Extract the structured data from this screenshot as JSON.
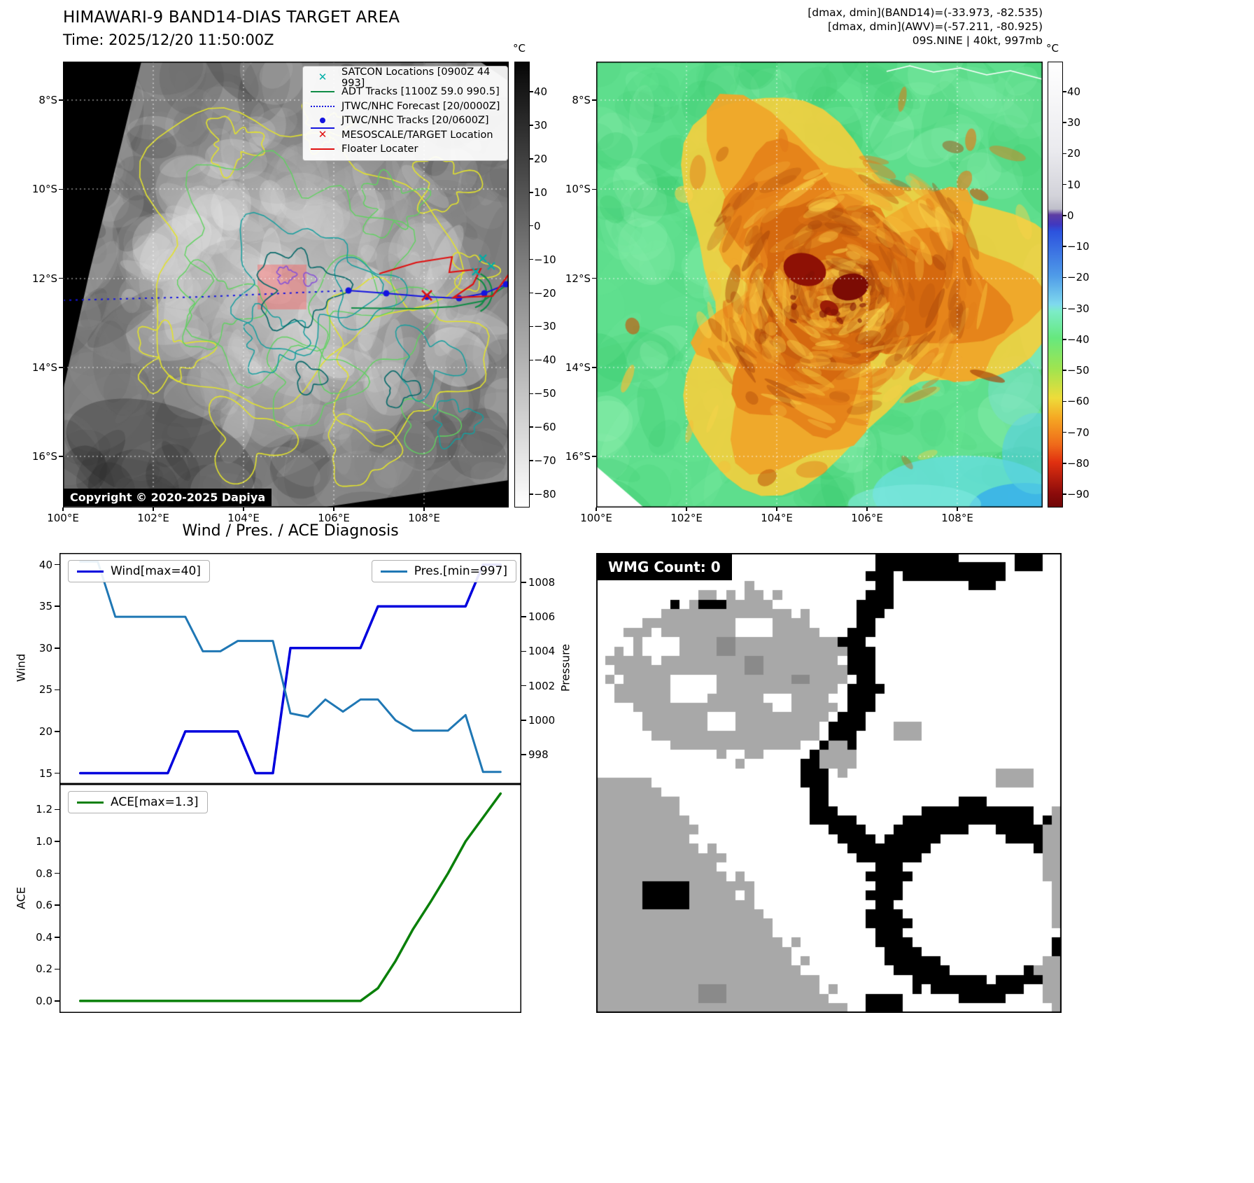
{
  "band14": {
    "title": "HIMAWARI-9 BAND14-DIAS TARGET AREA",
    "time_line": "Time: 2025/12/20 11:50:00Z",
    "legend": [
      {
        "label": "SATCON Locations [0900Z 44 993]"
      },
      {
        "label": "ADT Tracks [1100Z 59.0 990.5]"
      },
      {
        "label": "JTWC/NHC Forecast [20/0000Z]"
      },
      {
        "label": "JTWC/NHC Tracks [20/0600Z]"
      },
      {
        "label": "MESOSCALE/TARGET Location"
      },
      {
        "label": "Floater Locater"
      }
    ],
    "copyright": "Copyright © 2020-2025 Dapiya",
    "x_ticks": [
      "100°E",
      "102°E",
      "104°E",
      "106°E",
      "108°E"
    ],
    "y_ticks": [
      "8°S",
      "10°S",
      "12°S",
      "14°S",
      "16°S"
    ],
    "track_colors": {
      "satcon": "#00afa8",
      "adt": "#0f8c46",
      "forecast": "#1414e0",
      "tracks": "#1414e0",
      "mesoscale": "#e01010",
      "floater": "#e01010"
    },
    "colorbar": {
      "unit": "°C",
      "ticks": [
        "40",
        "30",
        "20",
        "10",
        "0",
        "−10",
        "−20",
        "−30",
        "−40",
        "−50",
        "−60",
        "−70",
        "−80"
      ],
      "gradient": [
        [
          0,
          "#050505"
        ],
        [
          0.05,
          "#141414"
        ],
        [
          0.5,
          "#8a8a8a"
        ],
        [
          1,
          "#ffffff"
        ]
      ]
    }
  },
  "awv": {
    "header_lines": [
      "[dmax, dmin](BAND14)=(-33.973, -82.535)",
      "[dmax, dmin](AWV)=(-57.211, -80.925)",
      "09S.NINE | 40kt, 997mb"
    ],
    "x_ticks": [
      "100°E",
      "102°E",
      "104°E",
      "106°E",
      "108°E"
    ],
    "y_ticks": [
      "8°S",
      "10°S",
      "12°S",
      "14°S",
      "16°S"
    ],
    "colorbar": {
      "unit": "°C",
      "ticks": [
        "40",
        "30",
        "20",
        "10",
        "0",
        "−10",
        "−20",
        "−30",
        "−40",
        "−50",
        "−60",
        "−70",
        "−80",
        "−90"
      ],
      "gradient": [
        [
          0,
          "#ffffff"
        ],
        [
          0.2,
          "#eaeaee"
        ],
        [
          0.3,
          "#d3d3da"
        ],
        [
          0.33,
          "#bfbfca"
        ],
        [
          0.343,
          "#5e3da2"
        ],
        [
          0.365,
          "#4038c0"
        ],
        [
          0.38,
          "#2c52de"
        ],
        [
          0.48,
          "#4f9be8"
        ],
        [
          0.545,
          "#7fd9ee"
        ],
        [
          0.56,
          "#7cecc8"
        ],
        [
          0.62,
          "#66e87e"
        ],
        [
          0.69,
          "#a0e44f"
        ],
        [
          0.755,
          "#eedc3a"
        ],
        [
          0.8,
          "#f5a823"
        ],
        [
          0.86,
          "#ef6a1a"
        ],
        [
          0.9,
          "#e03010"
        ],
        [
          0.97,
          "#8c0b0b"
        ],
        [
          1,
          "#700606"
        ]
      ]
    }
  },
  "wmg": {
    "title": "WMG Count: 0"
  },
  "chart_data": [
    {
      "type": "line",
      "title": "Wind / Pres. / ACE Diagnosis",
      "series": [
        {
          "name": "Wind[max=40]",
          "axis": "left",
          "color": "#0000dd",
          "width": 3.5,
          "values": [
            15,
            15,
            15,
            15,
            15,
            15,
            20,
            20,
            20,
            20,
            15,
            15,
            30,
            30,
            30,
            30,
            30,
            35,
            35,
            35,
            35,
            35,
            35,
            40,
            40
          ]
        },
        {
          "name": "Pres.[min=997]",
          "axis": "right",
          "color": "#1f77b4",
          "width": 3,
          "values": [
            1009.2,
            1009.2,
            1006,
            1006,
            1006,
            1006,
            1006,
            1004,
            1004,
            1004.6,
            1004.6,
            1004.6,
            1000.4,
            1000.2,
            1001.2,
            1000.5,
            1001.2,
            1001.2,
            1000,
            999.4,
            999.4,
            999.4,
            1000.3,
            997,
            997
          ]
        }
      ],
      "left_axis": {
        "label": "Wind",
        "ticks": [
          "15",
          "20",
          "25",
          "30",
          "35",
          "40"
        ],
        "range": [
          13.7,
          41.4
        ]
      },
      "right_axis": {
        "label": "Pressure",
        "ticks": [
          "998",
          "1000",
          "1002",
          "1004",
          "1006",
          "1008"
        ],
        "range": [
          996.3,
          1009.7
        ]
      },
      "legend_position": {
        "wind": "upper-left",
        "pressure": "upper-right"
      }
    },
    {
      "type": "line",
      "series": [
        {
          "name": "ACE[max=1.3]",
          "axis": "left",
          "color": "#0a800a",
          "width": 3.5,
          "values": [
            0,
            0,
            0,
            0,
            0,
            0,
            0,
            0,
            0,
            0,
            0,
            0,
            0,
            0,
            0,
            0,
            0,
            0.08,
            0.25,
            0.45,
            0.62,
            0.8,
            1.0,
            1.15,
            1.3
          ]
        }
      ],
      "left_axis": {
        "label": "ACE",
        "ticks": [
          "0.0",
          "0.2",
          "0.4",
          "0.6",
          "0.8",
          "1.0",
          "1.2"
        ],
        "range": [
          -0.075,
          1.36
        ]
      }
    }
  ]
}
